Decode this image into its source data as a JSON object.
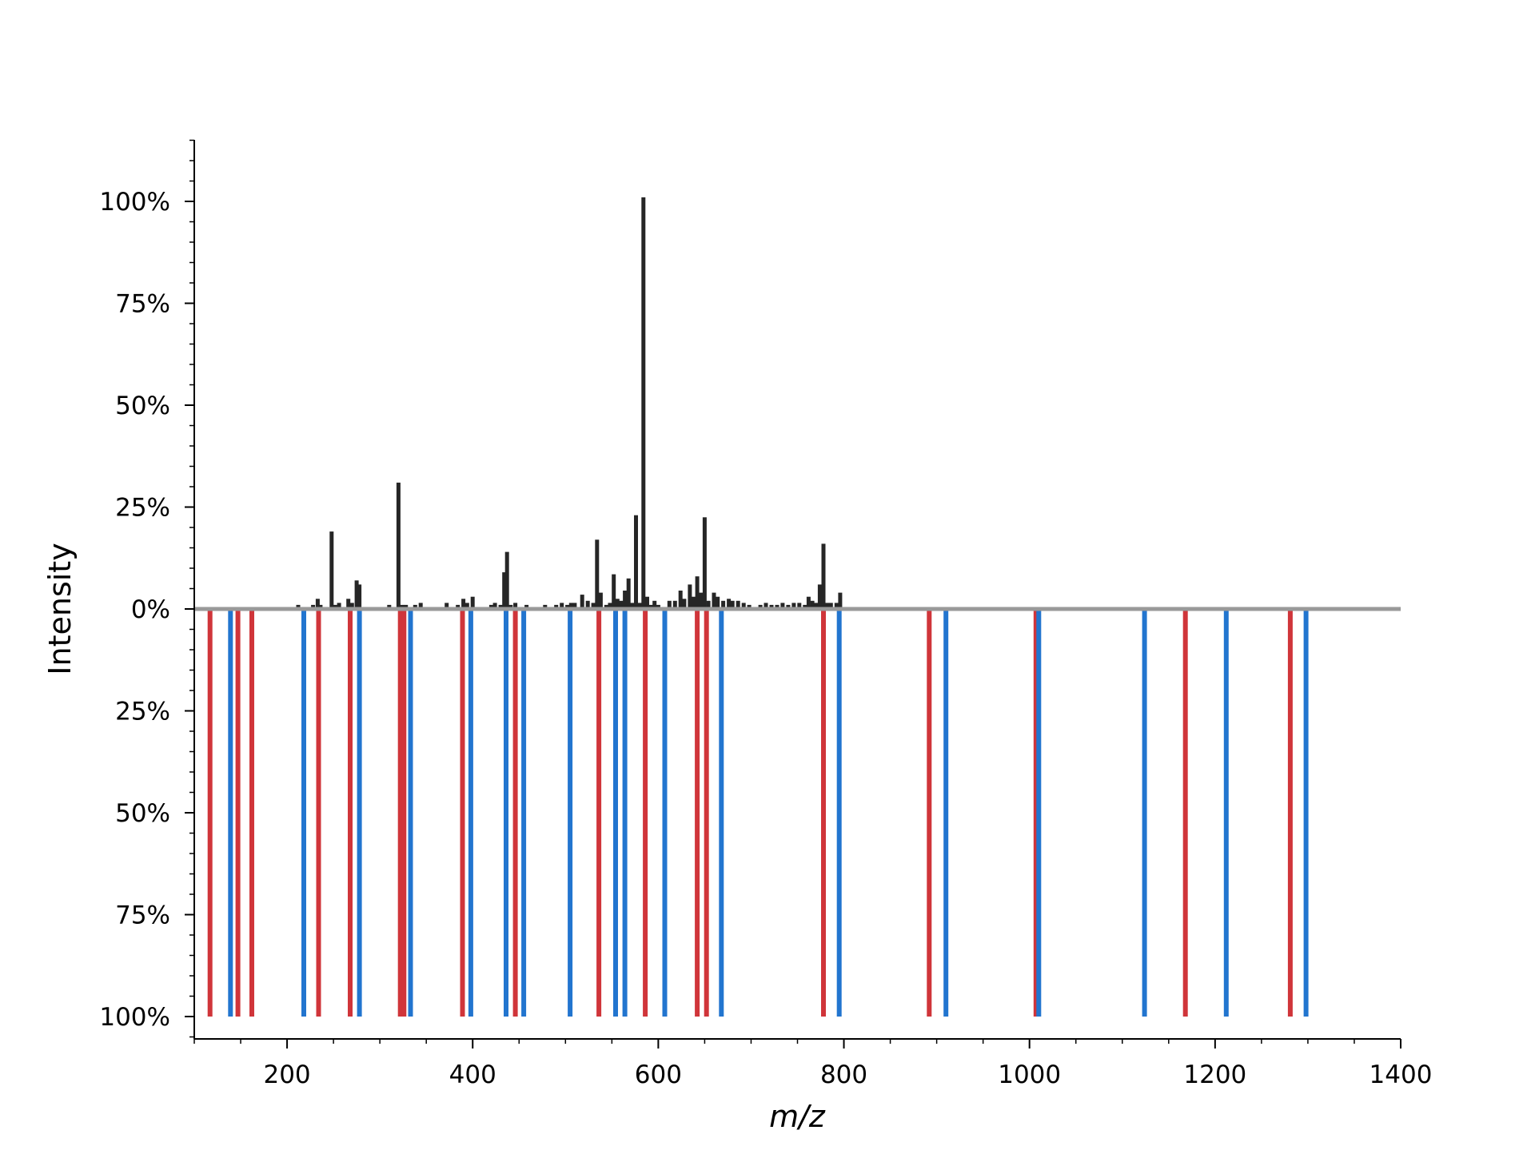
{
  "chart_data": {
    "type": "bar",
    "title": "",
    "xlabel": "m/z",
    "ylabel": "Intensity",
    "xlim": [
      100,
      1400
    ],
    "ylim": [
      -105,
      115
    ],
    "grid": false,
    "x_ticks": [
      200,
      400,
      600,
      800,
      1000,
      1200,
      1400
    ],
    "x_tick_labels": [
      "200",
      "400",
      "600",
      "800",
      "1000",
      "1200",
      "1400"
    ],
    "y_ticks": [
      100,
      75,
      50,
      25,
      0,
      -25,
      -50,
      -75,
      -100
    ],
    "y_tick_labels": [
      "100%",
      "75%",
      "50%",
      "25%",
      "0%",
      "25%",
      "50%",
      "75%",
      "100%"
    ],
    "colors": {
      "observed": "#262626",
      "predicted_red": "#d0353a",
      "predicted_blue": "#2275cf",
      "baseline": "#999999"
    },
    "series": [
      {
        "color": "#262626",
        "x": [
          212,
          216,
          228,
          233,
          236,
          248,
          252,
          256,
          260,
          266,
          270,
          275,
          278,
          288,
          300,
          310,
          316,
          320,
          324,
          328,
          332,
          338,
          344,
          350,
          356,
          362,
          372,
          378,
          384,
          390,
          394,
          400,
          410,
          420,
          424,
          430,
          434,
          437,
          441,
          446,
          452,
          458,
          466,
          472,
          478,
          484,
          490,
          496,
          502,
          506,
          510,
          518,
          524,
          530,
          534,
          538,
          544,
          548,
          552,
          556,
          560,
          564,
          568,
          572,
          576,
          580,
          584,
          588,
          592,
          596,
          600,
          606,
          612,
          618,
          624,
          628,
          634,
          638,
          642,
          646,
          650,
          654,
          660,
          664,
          670,
          676,
          680,
          686,
          692,
          698,
          710,
          716,
          722,
          728,
          734,
          740,
          746,
          752,
          758,
          762,
          766,
          770,
          774,
          778,
          782,
          786,
          792,
          796
        ],
        "values": [
          1,
          0.5,
          1,
          2.5,
          1,
          19,
          1,
          1.5,
          0.5,
          2.5,
          1.5,
          7,
          6,
          0.5,
          0.5,
          1,
          0.5,
          31,
          1,
          1,
          0.5,
          1,
          1.5,
          0.5,
          0.5,
          0.5,
          1.5,
          0.5,
          1,
          2.5,
          1.5,
          3,
          0.5,
          1,
          1.5,
          1,
          9,
          14,
          1,
          1.5,
          0.5,
          1,
          0.5,
          0.5,
          1,
          0.5,
          1,
          1.5,
          1,
          1.5,
          1.5,
          3.5,
          2,
          1.5,
          17,
          4,
          1,
          1.5,
          8.5,
          2.5,
          2,
          4.5,
          7.5,
          1.5,
          23,
          1.5,
          101,
          3,
          1,
          2,
          1,
          0.5,
          2,
          2,
          4.5,
          2.5,
          6,
          3,
          8,
          4,
          22.5,
          2,
          4,
          3,
          2,
          2.5,
          2,
          2,
          1.5,
          1,
          1,
          1.5,
          1,
          1,
          1.5,
          1,
          1.5,
          1.5,
          1,
          3,
          2,
          1.5,
          6,
          16,
          1.5,
          1.5,
          1.5,
          4
        ]
      },
      {
        "color": "#d0353a",
        "x": [
          117,
          147,
          162,
          234,
          268,
          322,
          326,
          389,
          446,
          536,
          586,
          642,
          652,
          778,
          892,
          1007,
          1168,
          1281
        ],
        "values": [
          -100,
          -100,
          -100,
          -100,
          -100,
          -100,
          -100,
          -100,
          -100,
          -100,
          -100,
          -100,
          -100,
          -100,
          -100,
          -100,
          -100,
          -100
        ]
      },
      {
        "color": "#2275cf",
        "x": [
          139,
          218,
          278,
          333,
          398,
          436,
          455,
          505,
          554,
          564,
          607,
          668,
          795,
          910,
          1010,
          1124,
          1212,
          1298
        ],
        "values": [
          -100,
          -100,
          -100,
          -100,
          -100,
          -100,
          -100,
          -100,
          -100,
          -100,
          -100,
          -100,
          -100,
          -100,
          -100,
          -100,
          -100,
          -100
        ]
      }
    ]
  }
}
